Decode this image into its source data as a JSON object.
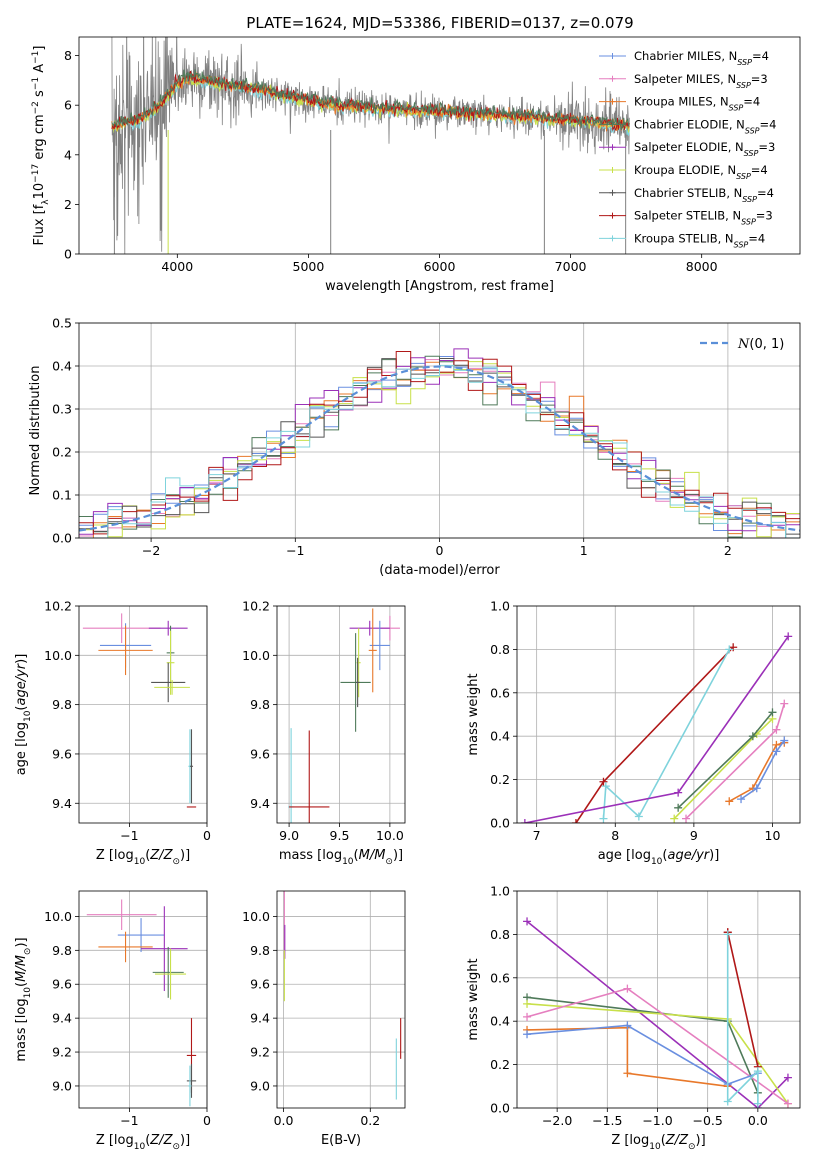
{
  "figure_title": "PLATE=1624, MJD=53386, FIBERID=0137, z=0.079",
  "colors": {
    "chabrier_miles": "#6a8fe0",
    "salpeter_miles": "#e57fbf",
    "kroupa_miles": "#e8782a",
    "chabrier_elodie": "#4f7a5a",
    "salpeter_elodie": "#9b30b8",
    "kroupa_elodie": "#c8e04a",
    "chabrier_stelib": "#555555",
    "salpeter_stelib": "#b01818",
    "kroupa_stelib": "#7fd3dc",
    "data": "#808080",
    "gaussian": "#5a8fd8"
  },
  "chart_data": [
    {
      "id": "spectrum",
      "type": "line",
      "title": "PLATE=1624, MJD=53386, FIBERID=0137, z=0.079",
      "xlabel": "wavelength [Angstrom, rest frame]",
      "ylabel": "Flux [f_λ 10^-17 erg cm^-2 s^-1 A^-1]",
      "xlim": [
        3250,
        8750
      ],
      "ylim": [
        0,
        8.75
      ],
      "xticks": [
        4000,
        5000,
        6000,
        7000,
        8000
      ],
      "yticks": [
        0,
        2,
        4,
        6,
        8
      ],
      "grid": false,
      "legend_position": "top-right",
      "legend": [
        {
          "label": "Chabrier MILES, N",
          "sub": "SSP",
          "suffix": "=4",
          "color_key": "chabrier_miles"
        },
        {
          "label": "Salpeter MILES, N",
          "sub": "SSP",
          "suffix": "=3",
          "color_key": "salpeter_miles"
        },
        {
          "label": "Kroupa MILES, N",
          "sub": "SSP",
          "suffix": "=4",
          "color_key": "kroupa_miles"
        },
        {
          "label": "Chabrier ELODIE, N",
          "sub": "SSP",
          "suffix": "=4",
          "color_key": "chabrier_elodie"
        },
        {
          "label": "Salpeter ELODIE, N",
          "sub": "SSP",
          "suffix": "=3",
          "color_key": "salpeter_elodie"
        },
        {
          "label": "Kroupa ELODIE, N",
          "sub": "SSP",
          "suffix": "=4",
          "color_key": "kroupa_elodie"
        },
        {
          "label": "Chabrier STELIB, N",
          "sub": "SSP",
          "suffix": "=4",
          "color_key": "chabrier_stelib"
        },
        {
          "label": "Salpeter STELIB, N",
          "sub": "SSP",
          "suffix": "=3",
          "color_key": "salpeter_stelib"
        },
        {
          "label": "Kroupa STELIB, N",
          "sub": "SSP",
          "suffix": "=4",
          "color_key": "kroupa_stelib"
        }
      ],
      "continuum": {
        "x": [
          3500,
          3600,
          3700,
          3800,
          3900,
          4000,
          4100,
          4200,
          4300,
          4400,
          4600,
          4800,
          5000,
          5200,
          5500,
          5800,
          6000,
          6300,
          6600,
          7000,
          7400
        ],
        "y": [
          5.1,
          5.3,
          5.4,
          5.7,
          6.2,
          6.9,
          7.1,
          7.0,
          6.9,
          6.8,
          6.7,
          6.4,
          6.2,
          6.0,
          5.9,
          5.8,
          5.75,
          5.65,
          5.55,
          5.4,
          5.2
        ]
      },
      "data_range": [
        3500,
        7450
      ]
    },
    {
      "id": "residuals",
      "type": "line",
      "xlabel": "(data-model)/error",
      "ylabel": "Normed distribution",
      "xlim": [
        -2.5,
        2.5
      ],
      "ylim": [
        0,
        0.5
      ],
      "xticks": [
        -2,
        -1,
        0,
        1,
        2
      ],
      "yticks": [
        0.0,
        0.1,
        0.2,
        0.3,
        0.4,
        0.5
      ],
      "grid": true,
      "legend_position": "top-right",
      "legend": [
        {
          "label": "N(0, 1)",
          "style": "dashed",
          "color_key": "gaussian"
        }
      ],
      "bin_width": 0.1
    },
    {
      "id": "age_vs_Z",
      "type": "scatter",
      "xlabel": "Z [log10(Z/Z⊙)]",
      "ylabel": "age [log10(age/yr)]",
      "xlim": [
        -1.65,
        0.0
      ],
      "ylim": [
        9.32,
        10.2
      ],
      "xticks": [
        -1,
        0
      ],
      "yticks": [
        9.4,
        9.6,
        9.8,
        10.0,
        10.2
      ],
      "grid": true,
      "points": [
        {
          "color_key": "salpeter_miles",
          "x": -1.1,
          "y": 10.11,
          "xerr": 0.5,
          "yerr": 0.06
        },
        {
          "color_key": "chabrier_miles",
          "x": -1.05,
          "y": 10.04,
          "xerr": 0.33,
          "yerr": 0.09
        },
        {
          "color_key": "kroupa_miles",
          "x": -1.05,
          "y": 10.02,
          "xerr": 0.35,
          "yerr": 0.1
        },
        {
          "color_key": "salpeter_elodie",
          "x": -0.5,
          "y": 10.11,
          "xerr": 0.25,
          "yerr": 0.03
        },
        {
          "color_key": "chabrier_elodie",
          "x": -0.47,
          "y": 10.01,
          "xerr": 0.05,
          "yerr": 0.11
        },
        {
          "color_key": "kroupa_elodie",
          "x": -0.47,
          "y": 9.97,
          "xerr": 0.05,
          "yerr": 0.13
        },
        {
          "color_key": "chabrier_stelib",
          "x": -0.5,
          "y": 9.89,
          "xerr": 0.22,
          "yerr": 0.08
        },
        {
          "color_key": "kroupa_elodie",
          "x": -0.45,
          "y": 9.87,
          "xerr": 0.23,
          "yerr": 0.03
        },
        {
          "color_key": "kroupa_stelib",
          "x": -0.22,
          "y": 9.55,
          "xerr": 0.02,
          "yerr": 0.15
        },
        {
          "color_key": "chabrier_stelib",
          "x": -0.2,
          "y": 9.55,
          "xerr": 0.02,
          "yerr": 0.15
        },
        {
          "color_key": "salpeter_stelib",
          "x": -0.2,
          "y": 9.385,
          "xerr": 0.06,
          "yerr": 0.0
        }
      ]
    },
    {
      "id": "age_vs_mass",
      "type": "scatter",
      "xlabel": "mass [log10(M/M⊙)]",
      "ylabel": "",
      "xlim": [
        8.88,
        10.15
      ],
      "ylim": [
        9.32,
        10.2
      ],
      "xticks": [
        9.0,
        9.5,
        10.0
      ],
      "yticks": [
        9.4,
        9.6,
        9.8,
        10.0,
        10.2
      ],
      "grid": true,
      "points": [
        {
          "color_key": "salpeter_miles",
          "x": 10.0,
          "y": 10.11,
          "xerr": 0.1,
          "yerr": 0.05
        },
        {
          "color_key": "salpeter_elodie",
          "x": 9.8,
          "y": 10.11,
          "xerr": 0.2,
          "yerr": 0.03
        },
        {
          "color_key": "chabrier_miles",
          "x": 9.9,
          "y": 10.04,
          "xerr": 0.1,
          "yerr": 0.1
        },
        {
          "color_key": "kroupa_miles",
          "x": 9.83,
          "y": 10.02,
          "xerr": 0.04,
          "yerr": 0.17
        },
        {
          "color_key": "kroupa_elodie",
          "x": 9.69,
          "y": 9.97,
          "xerr": 0.02,
          "yerr": 0.14
        },
        {
          "color_key": "chabrier_elodie",
          "x": 9.66,
          "y": 9.89,
          "xerr": 0.15,
          "yerr": 0.2
        },
        {
          "color_key": "chabrier_stelib",
          "x": 9.68,
          "y": 9.89,
          "xerr": 0.02,
          "yerr": 0.1
        },
        {
          "color_key": "kroupa_stelib",
          "x": 9.02,
          "y": 9.385,
          "xerr": 0.03,
          "yerr": 0.32
        },
        {
          "color_key": "salpeter_stelib",
          "x": 9.2,
          "y": 9.385,
          "xerr": 0.2,
          "yerr": 0.31
        }
      ]
    },
    {
      "id": "weight_vs_age",
      "type": "line",
      "xlabel": "age [log10(age/yr)]",
      "ylabel": "mass weight",
      "xlim": [
        6.75,
        10.35
      ],
      "ylim": [
        0,
        1.0
      ],
      "xticks": [
        7,
        8,
        9,
        10
      ],
      "yticks": [
        0.0,
        0.2,
        0.4,
        0.6,
        0.8,
        1.0
      ],
      "grid": true,
      "series": [
        {
          "color_key": "salpeter_stelib",
          "x": [
            7.5,
            7.85,
            9.5
          ],
          "y": [
            0.0,
            0.19,
            0.81
          ]
        },
        {
          "color_key": "kroupa_stelib",
          "x": [
            7.85,
            7.88,
            8.3,
            9.45
          ],
          "y": [
            0.02,
            0.17,
            0.03,
            0.8
          ]
        },
        {
          "color_key": "salpeter_elodie",
          "x": [
            6.85,
            8.8,
            10.2
          ],
          "y": [
            0.0,
            0.14,
            0.86
          ]
        },
        {
          "color_key": "kroupa_elodie",
          "x": [
            8.75,
            9.8,
            10.0
          ],
          "y": [
            0.02,
            0.41,
            0.48
          ]
        },
        {
          "color_key": "chabrier_elodie",
          "x": [
            8.8,
            9.75,
            10.0
          ],
          "y": [
            0.07,
            0.4,
            0.51
          ]
        },
        {
          "color_key": "salpeter_miles",
          "x": [
            8.9,
            10.05,
            10.15
          ],
          "y": [
            0.02,
            0.43,
            0.55
          ]
        },
        {
          "color_key": "kroupa_miles",
          "x": [
            9.45,
            9.75,
            10.05,
            10.15
          ],
          "y": [
            0.1,
            0.16,
            0.36,
            0.37
          ]
        },
        {
          "color_key": "chabrier_miles",
          "x": [
            9.6,
            9.8,
            10.05,
            10.15
          ],
          "y": [
            0.11,
            0.16,
            0.33,
            0.38
          ]
        }
      ]
    },
    {
      "id": "mass_vs_Z",
      "type": "scatter",
      "xlabel": "Z [log10(Z/Z⊙)]",
      "ylabel": "mass [log10(M/M⊙)]",
      "xlim": [
        -1.65,
        0.0
      ],
      "ylim": [
        8.87,
        10.15
      ],
      "xticks": [
        -1,
        0
      ],
      "yticks": [
        9.0,
        9.2,
        9.4,
        9.6,
        9.8,
        10.0
      ],
      "grid": true,
      "points": [
        {
          "color_key": "salpeter_miles",
          "x": -1.1,
          "y": 10.01,
          "xerr": 0.45,
          "yerr": 0.09
        },
        {
          "color_key": "chabrier_miles",
          "x": -0.85,
          "y": 9.89,
          "xerr": 0.3,
          "yerr": 0.1
        },
        {
          "color_key": "kroupa_miles",
          "x": -1.05,
          "y": 9.82,
          "xerr": 0.35,
          "yerr": 0.09
        },
        {
          "color_key": "salpeter_elodie",
          "x": -0.55,
          "y": 9.81,
          "xerr": 0.3,
          "yerr": 0.25
        },
        {
          "color_key": "chabrier_elodie",
          "x": -0.5,
          "y": 9.67,
          "xerr": 0.2,
          "yerr": 0.15
        },
        {
          "color_key": "kroupa_elodie",
          "x": -0.47,
          "y": 9.66,
          "xerr": 0.2,
          "yerr": 0.15
        },
        {
          "color_key": "salpeter_stelib",
          "x": -0.2,
          "y": 9.18,
          "xerr": 0.06,
          "yerr": 0.22
        },
        {
          "color_key": "chabrier_stelib",
          "x": -0.2,
          "y": 9.03,
          "xerr": 0.06,
          "yerr": 0.1
        },
        {
          "color_key": "kroupa_stelib",
          "x": -0.22,
          "y": 9.0,
          "xerr": 0.02,
          "yerr": 0.12
        }
      ]
    },
    {
      "id": "mass_vs_ebv",
      "type": "scatter",
      "xlabel": "E(B-V)",
      "ylabel": "",
      "xlim": [
        -0.015,
        0.28
      ],
      "ylim": [
        8.87,
        10.15
      ],
      "xticks": [
        0.0,
        0.2
      ],
      "yticks": [
        9.0,
        9.2,
        9.4,
        9.6,
        9.8,
        10.0
      ],
      "grid": true,
      "points": [
        {
          "color_key": "salpeter_miles",
          "x": 0.002,
          "y": 9.95,
          "xerr": 0.0,
          "yerr": 0.2
        },
        {
          "color_key": "salpeter_elodie",
          "x": 0.003,
          "y": 9.85,
          "xerr": 0.0,
          "yerr": 0.1
        },
        {
          "color_key": "kroupa_elodie",
          "x": 0.002,
          "y": 9.65,
          "xerr": 0.0,
          "yerr": 0.15
        },
        {
          "color_key": "salpeter_stelib",
          "x": 0.27,
          "y": 9.28,
          "xerr": 0.0,
          "yerr": 0.12
        },
        {
          "color_key": "kroupa_stelib",
          "x": 0.26,
          "y": 9.1,
          "xerr": 0.0,
          "yerr": 0.18
        }
      ]
    },
    {
      "id": "weight_vs_Z",
      "type": "line",
      "xlabel": "Z [log10(Z/Z⊙)]",
      "ylabel": "mass weight",
      "xlim": [
        -2.4,
        0.42
      ],
      "ylim": [
        0,
        1.0
      ],
      "xticks": [
        -2.0,
        -1.5,
        -1.0,
        -0.5,
        0.0
      ],
      "yticks": [
        0.0,
        0.2,
        0.4,
        0.6,
        0.8,
        1.0
      ],
      "grid": true,
      "series": [
        {
          "color_key": "salpeter_elodie",
          "x": [
            -2.3,
            -0.0,
            0.3
          ],
          "y": [
            0.86,
            0.0,
            0.14
          ]
        },
        {
          "color_key": "chabrier_elodie",
          "x": [
            -2.3,
            -0.3,
            0.0
          ],
          "y": [
            0.51,
            0.4,
            0.07
          ]
        },
        {
          "color_key": "kroupa_elodie",
          "x": [
            -2.3,
            -0.3,
            0.3
          ],
          "y": [
            0.48,
            0.41,
            0.02
          ]
        },
        {
          "color_key": "salpeter_miles",
          "x": [
            -2.3,
            -1.3,
            0.3
          ],
          "y": [
            0.42,
            0.55,
            0.02
          ]
        },
        {
          "color_key": "kroupa_miles",
          "x": [
            -2.3,
            -1.3,
            -1.3,
            -0.3
          ],
          "y": [
            0.36,
            0.37,
            0.16,
            0.1
          ]
        },
        {
          "color_key": "chabrier_miles",
          "x": [
            -2.3,
            -1.3,
            -0.3,
            0.0
          ],
          "y": [
            0.34,
            0.38,
            0.11,
            0.16
          ]
        },
        {
          "color_key": "salpeter_stelib",
          "x": [
            -0.3,
            -0.3,
            0.0
          ],
          "y": [
            0.81,
            0.81,
            0.19
          ]
        },
        {
          "color_key": "kroupa_stelib",
          "x": [
            -0.3,
            -0.3,
            0.0,
            0.0
          ],
          "y": [
            0.8,
            0.03,
            0.17,
            0.02
          ]
        }
      ]
    }
  ]
}
